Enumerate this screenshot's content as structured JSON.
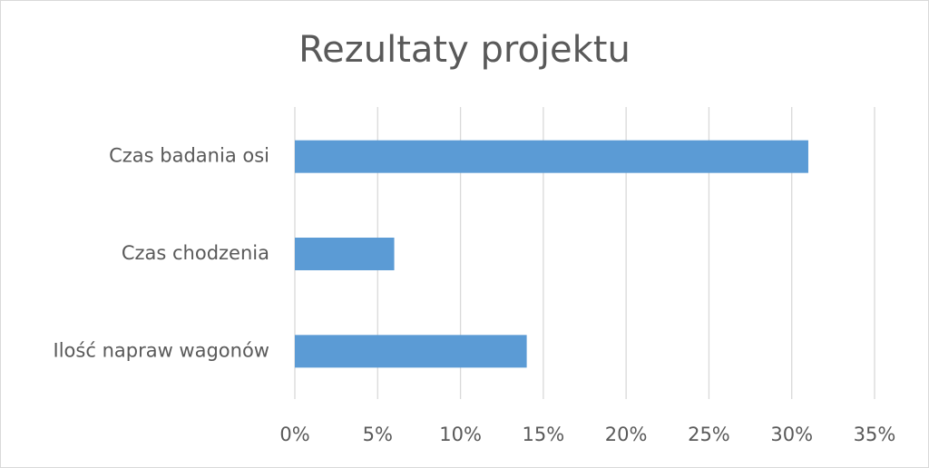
{
  "chart_data": {
    "type": "hbar",
    "title": "Rezultaty projektu",
    "categories": [
      "Czas badania osi",
      "Czas chodzenia",
      "Ilość napraw wagonów"
    ],
    "values": [
      31,
      6,
      14
    ],
    "color": "#5b9bd5",
    "xlim": [
      0,
      35
    ],
    "xticks": [
      {
        "value": 0,
        "label": "0%"
      },
      {
        "value": 5,
        "label": "5%"
      },
      {
        "value": 10,
        "label": "10%"
      },
      {
        "value": 15,
        "label": "15%"
      },
      {
        "value": 20,
        "label": "20%"
      },
      {
        "value": 25,
        "label": "25%"
      },
      {
        "value": 30,
        "label": "30%"
      },
      {
        "value": 35,
        "label": "35%"
      }
    ],
    "grid": true
  }
}
